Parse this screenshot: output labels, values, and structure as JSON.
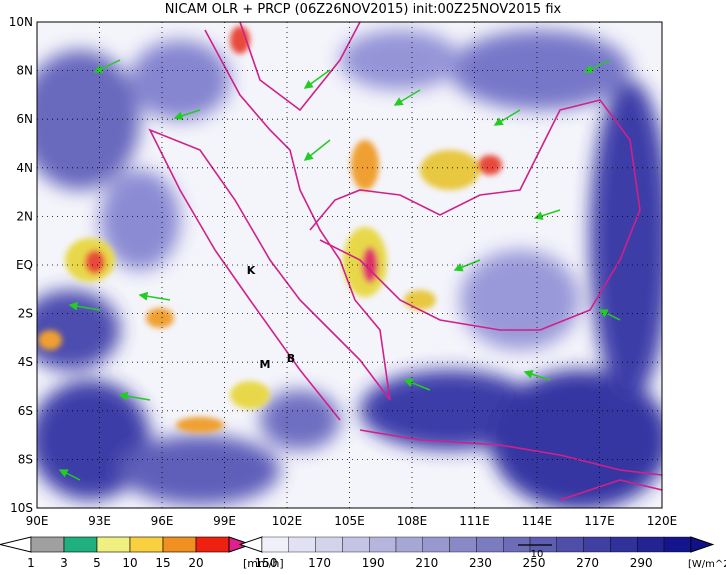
{
  "title": "NICAM OLR + PRCP (06Z26NOV2015) init:00Z25NOV2015 fix",
  "lat_labels": [
    "10N",
    "8N",
    "6N",
    "4N",
    "2N",
    "EQ",
    "2S",
    "4S",
    "6S",
    "8S",
    "10S"
  ],
  "lon_labels": [
    "90E",
    "93E",
    "96E",
    "99E",
    "102E",
    "105E",
    "108E",
    "111E",
    "114E",
    "117E",
    "120E"
  ],
  "places": [
    {
      "label": "K"
    },
    {
      "label": "M"
    },
    {
      "label": "B"
    }
  ],
  "precip_bar": {
    "labels": [
      "1",
      "3",
      "5",
      "10",
      "15",
      "20"
    ],
    "unit": "[mm/h]"
  },
  "olr_bar": {
    "labels": [
      "150",
      "170",
      "190",
      "210",
      "230",
      "250",
      "270",
      "290"
    ],
    "unit": "[W/m^2]"
  },
  "vector_ref": "10"
}
